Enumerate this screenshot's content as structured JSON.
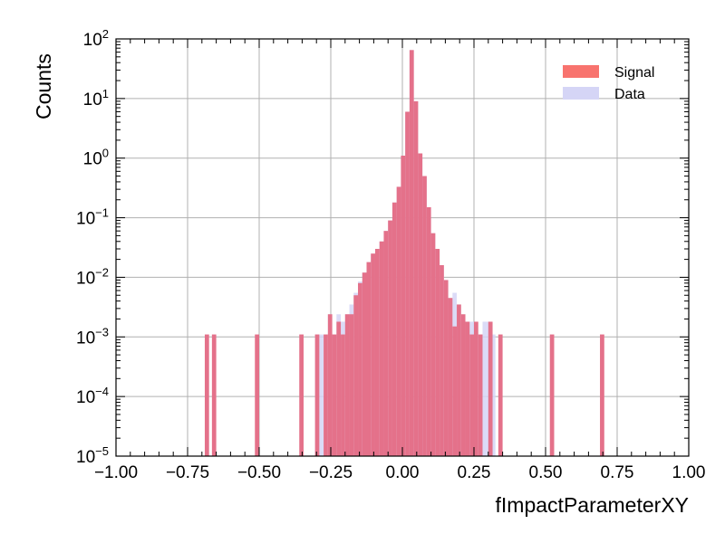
{
  "chart_data": {
    "type": "bar",
    "histtype": "step-filled overlay",
    "xlabel": "fImpactParameterXY",
    "ylabel": "Counts",
    "xlim": [
      -1.0,
      1.0
    ],
    "ylim": [
      1e-05,
      100
    ],
    "yscale": "log",
    "grid": true,
    "legend_position": "top-right",
    "x_tick_labels": [
      "−1.00",
      "−0.75",
      "−0.50",
      "−0.25",
      "0.00",
      "0.25",
      "0.50",
      "0.75",
      "1.00"
    ],
    "x_ticks": [
      -1.0,
      -0.75,
      -0.5,
      -0.25,
      0.0,
      0.25,
      0.5,
      0.75,
      1.0
    ],
    "y_tick_exponents": [
      "−5",
      "−4",
      "−3",
      "−2",
      "−1",
      "0",
      "1",
      "2"
    ],
    "y_ticks": [
      1e-05,
      0.0001,
      0.001,
      0.01,
      0.1,
      1,
      10,
      100
    ],
    "y_tick_base": "10",
    "colors": {
      "signal": "#f8736e",
      "data": "#d5d5f6",
      "overlap": "#e4718a",
      "grid": "#b0b0b0"
    },
    "series": [
      {
        "name": "Signal",
        "bins": [
          {
            "x0": -0.69,
            "x1": -0.675,
            "y": 0.0011
          },
          {
            "x0": -0.665,
            "x1": -0.65,
            "y": 0.0011
          },
          {
            "x0": -0.515,
            "x1": -0.5,
            "y": 0.0011
          },
          {
            "x0": -0.36,
            "x1": -0.345,
            "y": 0.0011
          },
          {
            "x0": -0.305,
            "x1": -0.29,
            "y": 0.0011
          },
          {
            "x0": -0.275,
            "x1": -0.26,
            "y": 0.0011
          },
          {
            "x0": -0.26,
            "x1": -0.245,
            "y": 0.0024
          },
          {
            "x0": -0.245,
            "x1": -0.23,
            "y": 0.0011
          },
          {
            "x0": -0.23,
            "x1": -0.215,
            "y": 0.0018
          },
          {
            "x0": -0.215,
            "x1": -0.2,
            "y": 0.0011
          },
          {
            "x0": -0.2,
            "x1": -0.185,
            "y": 0.0024
          },
          {
            "x0": -0.185,
            "x1": -0.17,
            "y": 0.0024
          },
          {
            "x0": -0.17,
            "x1": -0.155,
            "y": 0.005
          },
          {
            "x0": -0.155,
            "x1": -0.14,
            "y": 0.008
          },
          {
            "x0": -0.14,
            "x1": -0.125,
            "y": 0.012
          },
          {
            "x0": -0.125,
            "x1": -0.11,
            "y": 0.018
          },
          {
            "x0": -0.11,
            "x1": -0.095,
            "y": 0.025
          },
          {
            "x0": -0.095,
            "x1": -0.08,
            "y": 0.03
          },
          {
            "x0": -0.08,
            "x1": -0.065,
            "y": 0.04
          },
          {
            "x0": -0.065,
            "x1": -0.05,
            "y": 0.06
          },
          {
            "x0": -0.05,
            "x1": -0.035,
            "y": 0.09
          },
          {
            "x0": -0.035,
            "x1": -0.02,
            "y": 0.18
          },
          {
            "x0": -0.02,
            "x1": -0.005,
            "y": 0.33
          },
          {
            "x0": -0.005,
            "x1": 0.01,
            "y": 1.1
          },
          {
            "x0": 0.01,
            "x1": 0.025,
            "y": 6.0
          },
          {
            "x0": 0.025,
            "x1": 0.04,
            "y": 65.0
          },
          {
            "x0": 0.04,
            "x1": 0.055,
            "y": 9.0
          },
          {
            "x0": 0.055,
            "x1": 0.07,
            "y": 1.2
          },
          {
            "x0": 0.07,
            "x1": 0.085,
            "y": 0.5
          },
          {
            "x0": 0.085,
            "x1": 0.1,
            "y": 0.15
          },
          {
            "x0": 0.1,
            "x1": 0.115,
            "y": 0.055
          },
          {
            "x0": 0.115,
            "x1": 0.13,
            "y": 0.03
          },
          {
            "x0": 0.13,
            "x1": 0.145,
            "y": 0.016
          },
          {
            "x0": 0.145,
            "x1": 0.16,
            "y": 0.009
          },
          {
            "x0": 0.16,
            "x1": 0.175,
            "y": 0.0045
          },
          {
            "x0": 0.175,
            "x1": 0.19,
            "y": 0.0015
          },
          {
            "x0": 0.19,
            "x1": 0.205,
            "y": 0.0035
          },
          {
            "x0": 0.205,
            "x1": 0.22,
            "y": 0.0024
          },
          {
            "x0": 0.22,
            "x1": 0.235,
            "y": 0.0018
          },
          {
            "x0": 0.235,
            "x1": 0.25,
            "y": 0.0011
          },
          {
            "x0": 0.25,
            "x1": 0.265,
            "y": 0.0018
          },
          {
            "x0": 0.265,
            "x1": 0.28,
            "y": 0.0011
          },
          {
            "x0": 0.3,
            "x1": 0.315,
            "y": 0.0018
          },
          {
            "x0": 0.335,
            "x1": 0.35,
            "y": 0.0011
          },
          {
            "x0": 0.515,
            "x1": 0.53,
            "y": 0.0011
          },
          {
            "x0": 0.69,
            "x1": 0.705,
            "y": 0.0011
          }
        ]
      },
      {
        "name": "Data",
        "bins": [
          {
            "x0": -0.305,
            "x1": -0.29,
            "y": 0.0011
          },
          {
            "x0": -0.29,
            "x1": -0.275,
            "y": 0.0011
          },
          {
            "x0": -0.275,
            "x1": -0.26,
            "y": 0.0011
          },
          {
            "x0": -0.26,
            "x1": -0.245,
            "y": 0.0024
          },
          {
            "x0": -0.245,
            "x1": -0.23,
            "y": 0.0011
          },
          {
            "x0": -0.23,
            "x1": -0.215,
            "y": 0.0024
          },
          {
            "x0": -0.215,
            "x1": -0.2,
            "y": 0.0018
          },
          {
            "x0": -0.2,
            "x1": -0.185,
            "y": 0.0024
          },
          {
            "x0": -0.185,
            "x1": -0.17,
            "y": 0.0035
          },
          {
            "x0": -0.17,
            "x1": -0.155,
            "y": 0.0055
          },
          {
            "x0": -0.155,
            "x1": -0.14,
            "y": 0.0085
          },
          {
            "x0": -0.14,
            "x1": -0.125,
            "y": 0.012
          },
          {
            "x0": -0.125,
            "x1": -0.11,
            "y": 0.018
          },
          {
            "x0": -0.11,
            "x1": -0.095,
            "y": 0.025
          },
          {
            "x0": -0.095,
            "x1": -0.08,
            "y": 0.03
          },
          {
            "x0": -0.08,
            "x1": -0.065,
            "y": 0.04
          },
          {
            "x0": -0.065,
            "x1": -0.05,
            "y": 0.06
          },
          {
            "x0": -0.05,
            "x1": -0.035,
            "y": 0.09
          },
          {
            "x0": -0.035,
            "x1": -0.02,
            "y": 0.18
          },
          {
            "x0": -0.02,
            "x1": -0.005,
            "y": 0.33
          },
          {
            "x0": -0.005,
            "x1": 0.01,
            "y": 1.1
          },
          {
            "x0": 0.01,
            "x1": 0.025,
            "y": 6.0
          },
          {
            "x0": 0.025,
            "x1": 0.04,
            "y": 65.0
          },
          {
            "x0": 0.04,
            "x1": 0.055,
            "y": 9.0
          },
          {
            "x0": 0.055,
            "x1": 0.07,
            "y": 1.2
          },
          {
            "x0": 0.07,
            "x1": 0.085,
            "y": 0.5
          },
          {
            "x0": 0.085,
            "x1": 0.1,
            "y": 0.15
          },
          {
            "x0": 0.1,
            "x1": 0.115,
            "y": 0.055
          },
          {
            "x0": 0.115,
            "x1": 0.13,
            "y": 0.03
          },
          {
            "x0": 0.13,
            "x1": 0.145,
            "y": 0.016
          },
          {
            "x0": 0.145,
            "x1": 0.16,
            "y": 0.009
          },
          {
            "x0": 0.16,
            "x1": 0.175,
            "y": 0.0045
          },
          {
            "x0": 0.175,
            "x1": 0.19,
            "y": 0.0055
          },
          {
            "x0": 0.19,
            "x1": 0.205,
            "y": 0.0035
          },
          {
            "x0": 0.205,
            "x1": 0.22,
            "y": 0.0018
          },
          {
            "x0": 0.22,
            "x1": 0.235,
            "y": 0.0011
          },
          {
            "x0": 0.235,
            "x1": 0.25,
            "y": 0.0018
          },
          {
            "x0": 0.25,
            "x1": 0.265,
            "y": 0.0011
          },
          {
            "x0": 0.265,
            "x1": 0.28,
            "y": 0.0011
          },
          {
            "x0": 0.28,
            "x1": 0.295,
            "y": 0.0018
          },
          {
            "x0": 0.295,
            "x1": 0.31,
            "y": 0.0018
          },
          {
            "x0": 0.31,
            "x1": 0.325,
            "y": 0.0011
          }
        ]
      }
    ]
  }
}
